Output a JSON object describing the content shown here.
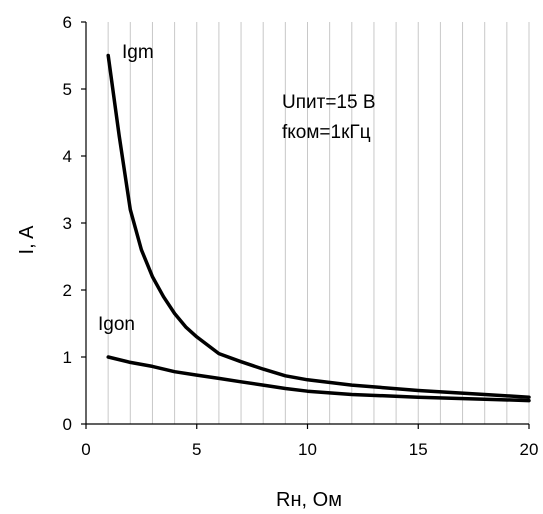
{
  "chart_data": {
    "type": "line",
    "title": "",
    "xlabel": "Rн, Ом",
    "ylabel": "I, A",
    "xlim": [
      0,
      20
    ],
    "ylim": [
      0,
      6
    ],
    "x_ticks": [
      0,
      5,
      10,
      15,
      20
    ],
    "y_ticks": [
      0,
      1,
      2,
      3,
      4,
      5,
      6
    ],
    "grid": {
      "vertical_step": 1,
      "horizontal": false
    },
    "series": [
      {
        "name": "Igm",
        "x": [
          1,
          1.5,
          2,
          2.5,
          3,
          3.5,
          4,
          4.5,
          5,
          6,
          7,
          8,
          9,
          10,
          12,
          15,
          18,
          20
        ],
        "y": [
          5.5,
          4.3,
          3.2,
          2.6,
          2.2,
          1.9,
          1.65,
          1.45,
          1.3,
          1.05,
          0.93,
          0.82,
          0.72,
          0.66,
          0.58,
          0.5,
          0.44,
          0.4
        ]
      },
      {
        "name": "Igon",
        "x": [
          1,
          2,
          3,
          4,
          5,
          6,
          7,
          8,
          9,
          10,
          12,
          15,
          18,
          20
        ],
        "y": [
          1.0,
          0.92,
          0.86,
          0.78,
          0.73,
          0.68,
          0.63,
          0.58,
          0.53,
          0.49,
          0.44,
          0.4,
          0.37,
          0.35
        ]
      }
    ],
    "annotations": [
      "Uпит=15 В",
      "fком=1кГц"
    ]
  }
}
